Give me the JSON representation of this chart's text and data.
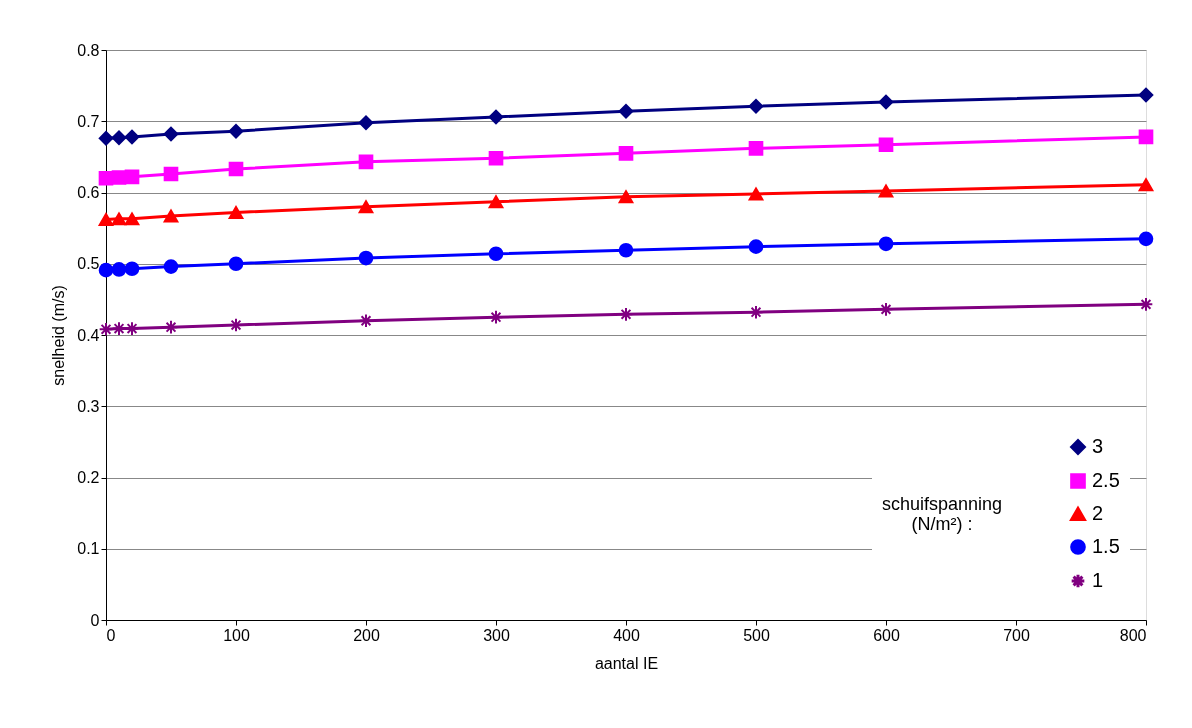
{
  "chart_data": {
    "type": "line",
    "xlabel": "aantal IE",
    "ylabel": "snelheid (m/s)",
    "legend_title": "schuifspanning (N/m²) :",
    "xlim": [
      0,
      800
    ],
    "xticks": [
      0,
      100,
      200,
      300,
      400,
      500,
      600,
      700,
      800
    ],
    "ylim": [
      0,
      0.8
    ],
    "yticks": [
      0,
      0.1,
      0.2,
      0.3,
      0.4,
      0.5,
      0.6,
      0.7,
      0.8
    ],
    "grid": "y",
    "legend": "bottom right",
    "line_style": "solid",
    "x": [
      0,
      10,
      20,
      50,
      100,
      200,
      300,
      400,
      500,
      600,
      800
    ],
    "series": [
      {
        "name": "3",
        "color": "#000080",
        "marker": "diamond",
        "values": [
          0.676,
          0.677,
          0.678,
          0.682,
          0.686,
          0.698,
          0.706,
          0.714,
          0.721,
          0.727,
          0.737
        ]
      },
      {
        "name": "2.5",
        "color": "#ff00ff",
        "marker": "square",
        "values": [
          0.62,
          0.621,
          0.622,
          0.626,
          0.633,
          0.643,
          0.648,
          0.655,
          0.662,
          0.667,
          0.678
        ]
      },
      {
        "name": "2",
        "color": "#ff0000",
        "marker": "triangle",
        "values": [
          0.562,
          0.563,
          0.563,
          0.567,
          0.572,
          0.58,
          0.587,
          0.594,
          0.598,
          0.602,
          0.611
        ]
      },
      {
        "name": "1.5",
        "color": "#0000ff",
        "marker": "circle",
        "values": [
          0.491,
          0.492,
          0.493,
          0.496,
          0.5,
          0.508,
          0.514,
          0.519,
          0.524,
          0.528,
          0.535
        ]
      },
      {
        "name": "1",
        "color": "#800080",
        "marker": "cross",
        "values": [
          0.408,
          0.409,
          0.409,
          0.411,
          0.414,
          0.42,
          0.425,
          0.429,
          0.432,
          0.436,
          0.443
        ]
      }
    ]
  }
}
